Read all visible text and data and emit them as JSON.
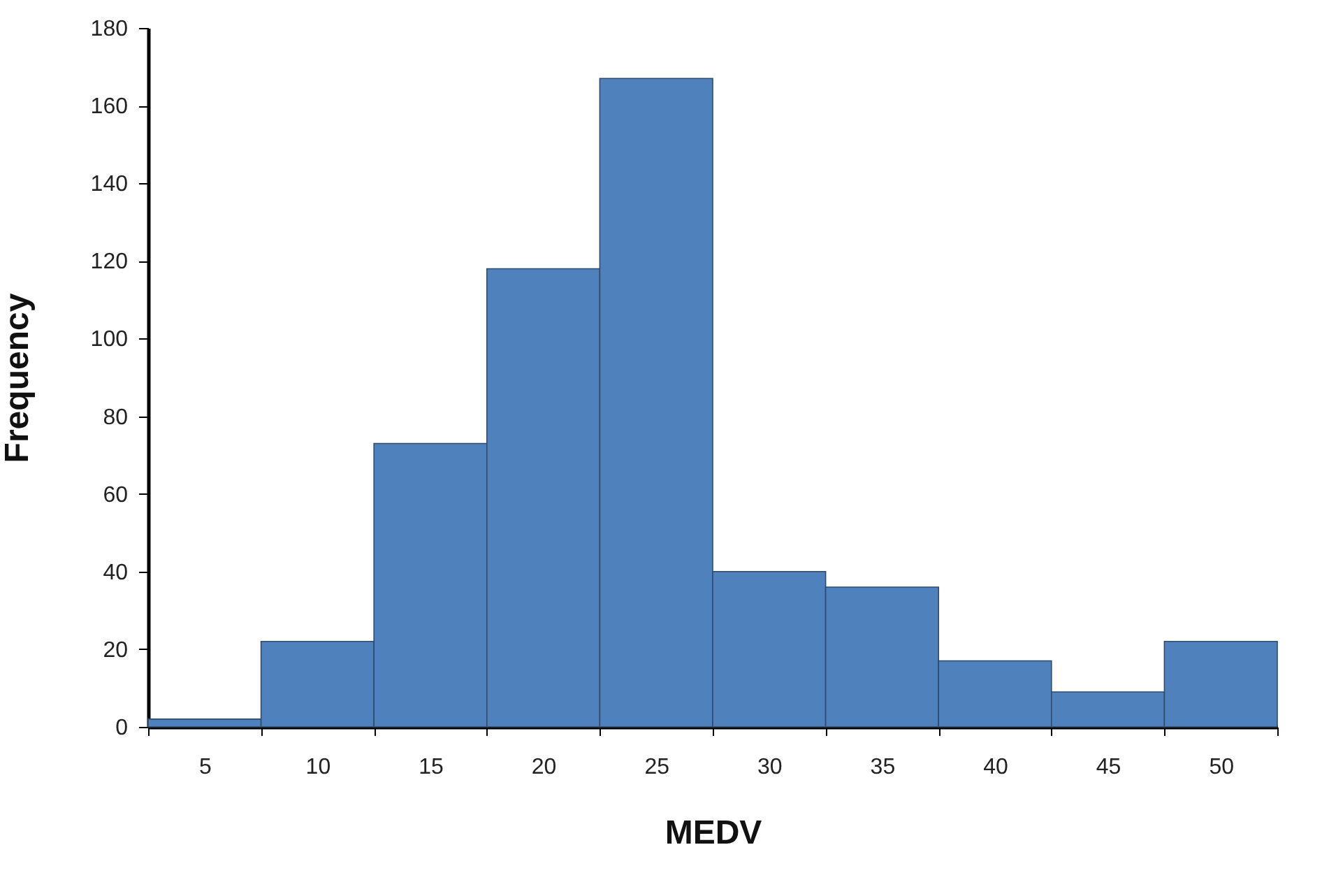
{
  "chart_data": {
    "type": "bar",
    "xlabel": "MEDV",
    "ylabel": "Frequency",
    "categories": [
      "5",
      "10",
      "15",
      "20",
      "25",
      "30",
      "35",
      "40",
      "45",
      "50"
    ],
    "values": [
      2,
      22,
      73,
      118,
      167,
      40,
      36,
      17,
      9,
      22
    ],
    "color": "#4f81bd",
    "ylim": [
      0,
      180
    ],
    "yticks": [
      0,
      20,
      40,
      60,
      80,
      100,
      120,
      140,
      160,
      180
    ],
    "grid": false
  }
}
